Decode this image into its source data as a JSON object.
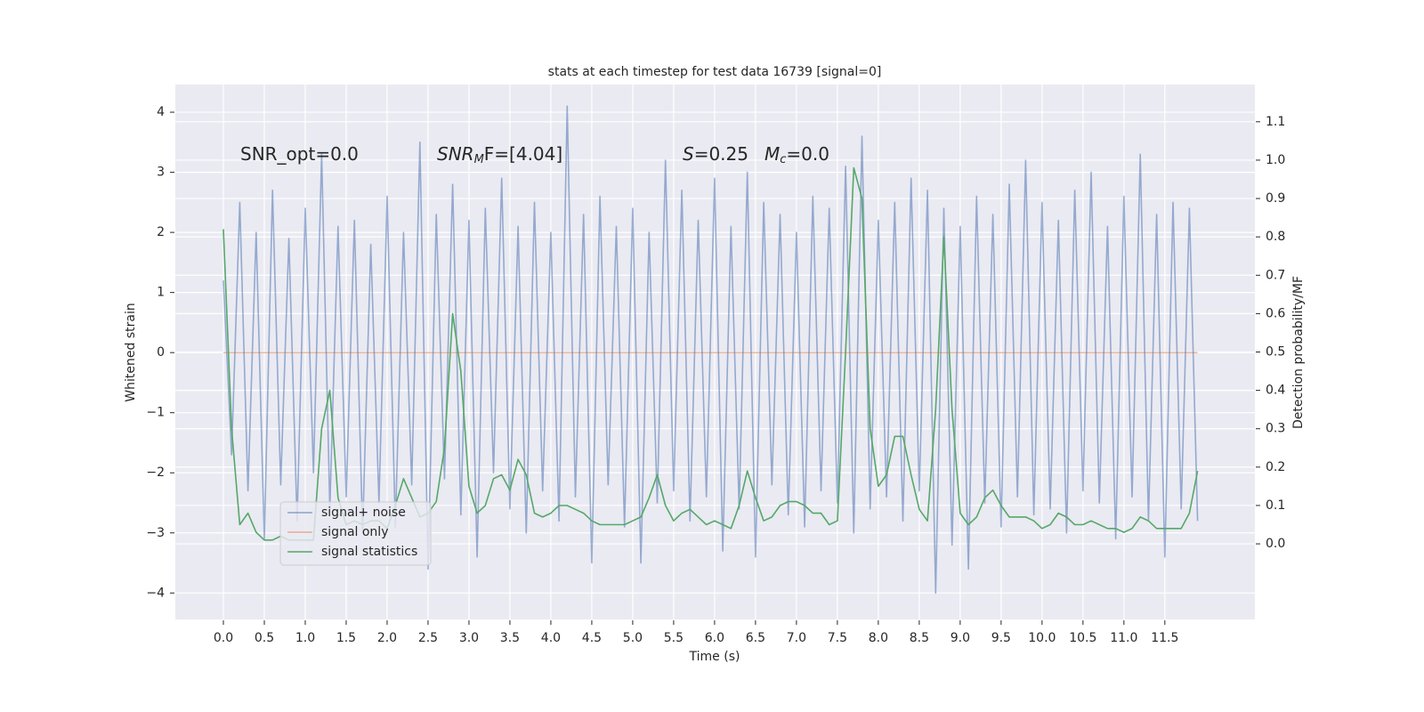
{
  "chart_data": {
    "type": "line",
    "title": "stats at each timestep for test data 16739 [signal=0]",
    "xlabel": "Time (s)",
    "ylabel": "Whitened strain",
    "y2label": "Detection probability/MF",
    "annotations": [
      {
        "main": "SNR_opt=0.0"
      },
      {
        "main": "SNR",
        "sub": "M",
        "tail": "F=[4.04]"
      },
      {
        "main": "S",
        "tail": "=0.25"
      },
      {
        "main": "M",
        "sub": "c",
        "tail": "=0.0"
      }
    ],
    "legend": "lower left",
    "grid": true,
    "x": [
      0,
      0.1,
      0.2,
      0.3,
      0.4,
      0.5,
      0.6,
      0.7,
      0.8,
      0.9,
      1,
      1.1,
      1.2,
      1.3,
      1.4,
      1.5,
      1.6,
      1.7,
      1.8,
      1.9,
      2,
      2.1,
      2.2,
      2.3,
      2.4,
      2.5,
      2.6,
      2.7,
      2.8,
      2.9,
      3,
      3.1,
      3.2,
      3.3,
      3.4,
      3.5,
      3.6,
      3.7,
      3.8,
      3.9,
      4,
      4.1,
      4.2,
      4.3,
      4.4,
      4.5,
      4.6,
      4.7,
      4.8,
      4.9,
      5,
      5.1,
      5.2,
      5.3,
      5.4,
      5.5,
      5.6,
      5.7,
      5.8,
      5.9,
      6,
      6.1,
      6.2,
      6.3,
      6.4,
      6.5,
      6.6,
      6.7,
      6.8,
      6.9,
      7,
      7.1,
      7.2,
      7.3,
      7.4,
      7.5,
      7.6,
      7.7,
      7.8,
      7.9,
      8,
      8.1,
      8.2,
      8.3,
      8.4,
      8.5,
      8.6,
      8.7,
      8.8,
      8.9,
      9,
      9.1,
      9.2,
      9.3,
      9.4,
      9.5,
      9.6,
      9.7,
      9.8,
      9.9,
      10,
      10.1,
      10.2,
      10.3,
      10.4,
      10.5,
      10.6,
      10.7,
      10.8,
      10.9,
      11,
      11.1,
      11.2,
      11.3,
      11.4,
      11.5,
      11.6,
      11.7,
      11.8,
      11.9
    ],
    "series": [
      {
        "name": "signal only",
        "color": "#dd8452",
        "values": [
          0,
          0,
          0,
          0,
          0,
          0,
          0,
          0,
          0,
          0,
          0,
          0,
          0,
          0,
          0,
          0,
          0,
          0,
          0,
          0,
          0,
          0,
          0,
          0,
          0,
          0,
          0,
          0,
          0,
          0,
          0,
          0,
          0,
          0,
          0,
          0,
          0,
          0,
          0,
          0,
          0,
          0,
          0,
          0,
          0,
          0,
          0,
          0,
          0,
          0,
          0,
          0,
          0,
          0,
          0,
          0,
          0,
          0,
          0,
          0,
          0,
          0,
          0,
          0,
          0,
          0,
          0,
          0,
          0,
          0,
          0,
          0,
          0,
          0,
          0,
          0,
          0,
          0,
          0,
          0,
          0,
          0,
          0,
          0,
          0,
          0,
          0,
          0,
          0,
          0,
          0,
          0,
          0,
          0,
          0,
          0,
          0,
          0,
          0,
          0,
          0,
          0,
          0,
          0,
          0,
          0,
          0,
          0,
          0,
          0,
          0,
          0,
          0,
          0,
          0,
          0,
          0,
          0,
          0,
          0
        ]
      },
      {
        "name": "signal+ noise",
        "color": "#4c72b0",
        "values": [
          1.2,
          -1.7,
          2.5,
          -2.3,
          2.0,
          -3.1,
          2.7,
          -2.2,
          1.9,
          -2.8,
          2.4,
          -2.0,
          3.3,
          -2.6,
          2.1,
          -2.4,
          2.2,
          -3.0,
          1.8,
          -2.5,
          2.6,
          -2.9,
          2.0,
          -2.2,
          3.5,
          -3.6,
          2.3,
          -2.1,
          2.8,
          -2.7,
          2.2,
          -3.4,
          2.4,
          -2.0,
          2.9,
          -2.6,
          2.1,
          -3.0,
          2.5,
          -2.3,
          2.0,
          -2.8,
          4.1,
          -2.4,
          2.3,
          -3.5,
          2.6,
          -2.2,
          2.1,
          -2.9,
          2.4,
          -3.5,
          2.0,
          -2.5,
          3.2,
          -2.3,
          2.7,
          -2.8,
          2.2,
          -2.4,
          2.9,
          -3.3,
          2.1,
          -2.6,
          3.0,
          -3.4,
          2.5,
          -2.2,
          2.3,
          -2.7,
          2.0,
          -2.9,
          2.6,
          -2.3,
          2.4,
          -2.5,
          3.1,
          -3.0,
          3.6,
          -2.6,
          2.2,
          -2.4,
          2.5,
          -2.8,
          2.9,
          -2.3,
          2.7,
          -4.0,
          2.4,
          -3.2,
          2.1,
          -3.6,
          2.6,
          -2.5,
          2.3,
          -2.9,
          2.8,
          -2.4,
          3.2,
          -2.7,
          2.5,
          -2.6,
          2.2,
          -3.0,
          2.7,
          -2.3,
          3.0,
          -2.5,
          2.1,
          -3.1,
          2.6,
          -2.4,
          3.3,
          -2.8,
          2.3,
          -3.4,
          2.5,
          -2.6,
          2.4,
          -2.8
        ]
      },
      {
        "name": "signal statistics",
        "color": "#55a868",
        "axis": "y2",
        "values": [
          0.82,
          0.3,
          0.05,
          0.08,
          0.03,
          0.01,
          0.01,
          0.02,
          0.01,
          0.01,
          0.01,
          0.01,
          0.3,
          0.4,
          0.12,
          0.05,
          0.06,
          0.05,
          0.06,
          0.06,
          0.04,
          0.1,
          0.17,
          0.12,
          0.07,
          0.08,
          0.11,
          0.25,
          0.6,
          0.45,
          0.15,
          0.08,
          0.1,
          0.17,
          0.18,
          0.14,
          0.22,
          0.18,
          0.08,
          0.07,
          0.08,
          0.1,
          0.1,
          0.09,
          0.08,
          0.06,
          0.05,
          0.05,
          0.05,
          0.05,
          0.06,
          0.07,
          0.12,
          0.18,
          0.1,
          0.06,
          0.08,
          0.09,
          0.07,
          0.05,
          0.06,
          0.05,
          0.04,
          0.1,
          0.19,
          0.12,
          0.06,
          0.07,
          0.1,
          0.11,
          0.11,
          0.1,
          0.08,
          0.08,
          0.05,
          0.06,
          0.5,
          0.98,
          0.9,
          0.3,
          0.15,
          0.18,
          0.28,
          0.28,
          0.18,
          0.09,
          0.06,
          0.35,
          0.8,
          0.35,
          0.08,
          0.05,
          0.07,
          0.12,
          0.14,
          0.1,
          0.07,
          0.07,
          0.07,
          0.06,
          0.04,
          0.05,
          0.08,
          0.07,
          0.05,
          0.05,
          0.06,
          0.05,
          0.04,
          0.04,
          0.03,
          0.04,
          0.07,
          0.06,
          0.04,
          0.04,
          0.04,
          0.04,
          0.08,
          0.19
        ]
      }
    ],
    "xlim": [
      -0.587,
      12.6
    ],
    "ylim": [
      -4.44,
      4.46
    ],
    "y2lim": [
      -0.197,
      1.197
    ],
    "xticks": [
      {
        "value": 0,
        "label": "0.0"
      },
      {
        "value": 0.5,
        "label": "0.5"
      },
      {
        "value": 1,
        "label": "1.0"
      },
      {
        "value": 1.5,
        "label": "1.5"
      },
      {
        "value": 2,
        "label": "2.0"
      },
      {
        "value": 2.5,
        "label": "2.5"
      },
      {
        "value": 3,
        "label": "3.0"
      },
      {
        "value": 3.5,
        "label": "3.5"
      },
      {
        "value": 4,
        "label": "4.0"
      },
      {
        "value": 4.5,
        "label": "4.5"
      },
      {
        "value": 5,
        "label": "5.0"
      },
      {
        "value": 5.5,
        "label": "5.5"
      },
      {
        "value": 6,
        "label": "6.0"
      },
      {
        "value": 6.5,
        "label": "6.5"
      },
      {
        "value": 7,
        "label": "7.0"
      },
      {
        "value": 7.5,
        "label": "7.5"
      },
      {
        "value": 8,
        "label": "8.0"
      },
      {
        "value": 8.5,
        "label": "8.5"
      },
      {
        "value": 9,
        "label": "9.0"
      },
      {
        "value": 9.5,
        "label": "9.5"
      },
      {
        "value": 10,
        "label": "10.0"
      },
      {
        "value": 10.5,
        "label": "10.5"
      },
      {
        "value": 11,
        "label": "11.0"
      },
      {
        "value": 11.5,
        "label": "11.5"
      }
    ],
    "yticks": [
      {
        "value": -4,
        "label": "−4"
      },
      {
        "value": -3,
        "label": "−3"
      },
      {
        "value": -2,
        "label": "−2"
      },
      {
        "value": -1,
        "label": "−1"
      },
      0,
      1,
      2,
      3,
      4
    ],
    "y2ticks": [
      {
        "value": 0,
        "label": "0.0"
      },
      {
        "value": 0.1,
        "label": "0.1"
      },
      {
        "value": 0.2,
        "label": "0.2"
      },
      {
        "value": 0.3,
        "label": "0.3"
      },
      {
        "value": 0.4,
        "label": "0.4"
      },
      {
        "value": 0.5,
        "label": "0.5"
      },
      {
        "value": 0.6,
        "label": "0.6"
      },
      {
        "value": 0.7,
        "label": "0.7"
      },
      {
        "value": 0.8,
        "label": "0.8"
      },
      {
        "value": 0.9,
        "label": "0.9"
      },
      {
        "value": 1,
        "label": "1.0"
      },
      {
        "value": 1.1,
        "label": "1.1"
      }
    ]
  }
}
